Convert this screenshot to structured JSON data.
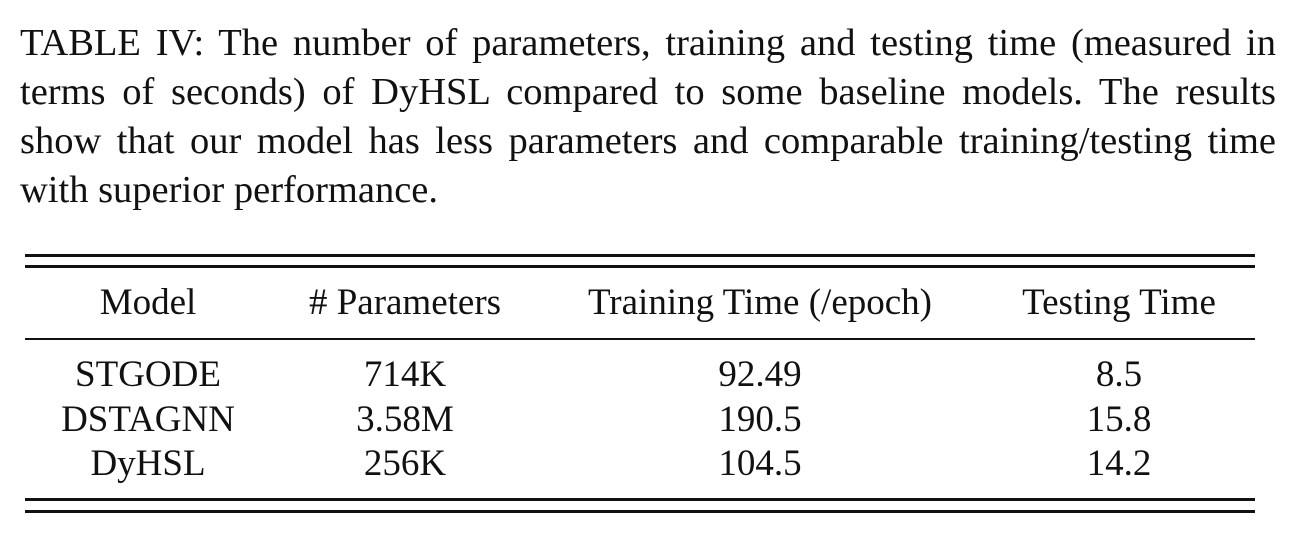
{
  "caption": "TABLE IV: The number of parameters, training and testing time (measured in terms of seconds) of DyHSL compared to some baseline models. The results show that our model has less parameters and comparable training/testing time with superior performance.",
  "table": {
    "header": [
      "Model",
      "# Parameters",
      "Training Time (/epoch)",
      "Testing Time"
    ],
    "rows": [
      [
        "STGODE",
        "714K",
        "92.49",
        "8.5"
      ],
      [
        "DSTAGNN",
        "3.58M",
        "190.5",
        "15.8"
      ],
      [
        "DyHSL",
        "256K",
        "104.5",
        "14.2"
      ]
    ]
  }
}
